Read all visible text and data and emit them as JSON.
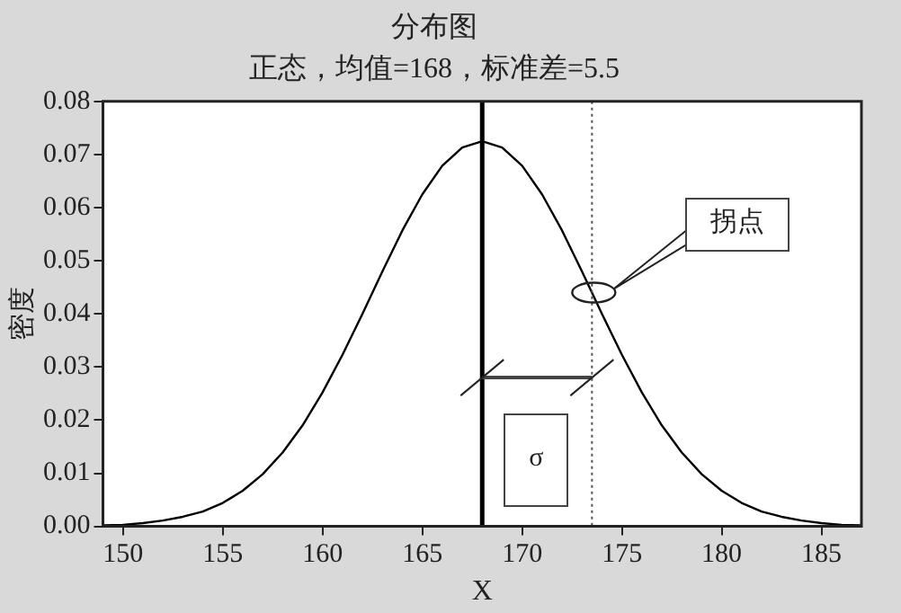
{
  "chart_data": {
    "type": "line",
    "title": "分布图",
    "subtitle": "正态，均值=168，标准差=5.5",
    "xlabel": "X",
    "ylabel": "密度",
    "x": [
      149,
      150,
      151,
      152,
      153,
      154,
      155,
      156,
      157,
      158,
      159,
      160,
      161,
      162,
      163,
      164,
      165,
      166,
      167,
      168,
      169,
      170,
      171,
      172,
      173,
      174,
      175,
      176,
      177,
      178,
      179,
      180,
      181,
      182,
      183,
      184,
      185,
      186,
      187
    ],
    "series": [
      {
        "color": "#000000",
        "values": [
          0.0002,
          0.0003,
          0.0006,
          0.0011,
          0.0018,
          0.0028,
          0.0044,
          0.0067,
          0.0098,
          0.0139,
          0.019,
          0.0252,
          0.0323,
          0.04,
          0.048,
          0.0557,
          0.0625,
          0.0679,
          0.0713,
          0.0725,
          0.0713,
          0.0679,
          0.0625,
          0.0557,
          0.048,
          0.04,
          0.0323,
          0.0252,
          0.019,
          0.0139,
          0.0098,
          0.0067,
          0.0044,
          0.0028,
          0.0018,
          0.0011,
          0.0006,
          0.0003,
          0.0002
        ]
      }
    ],
    "xlim": [
      149,
      187
    ],
    "xticks": [
      150,
      155,
      160,
      165,
      170,
      175,
      180,
      185
    ],
    "ylim": [
      0,
      0.08
    ],
    "yticks": [
      {
        "value": 0,
        "label": "0.00"
      },
      0.01,
      0.02,
      0.03,
      0.04,
      0.05,
      0.06,
      0.07,
      0.08
    ],
    "ref_lines": [
      {
        "axis": "x",
        "value": 168,
        "color": "#000000",
        "line_style": "solid"
      },
      {
        "axis": "x",
        "value": 173.5,
        "color": "#555555",
        "line_style": "dotted"
      }
    ],
    "annotations": [
      "拐点",
      "σ"
    ],
    "grid": false,
    "legend": false,
    "marker": "none",
    "line_style": "solid"
  }
}
